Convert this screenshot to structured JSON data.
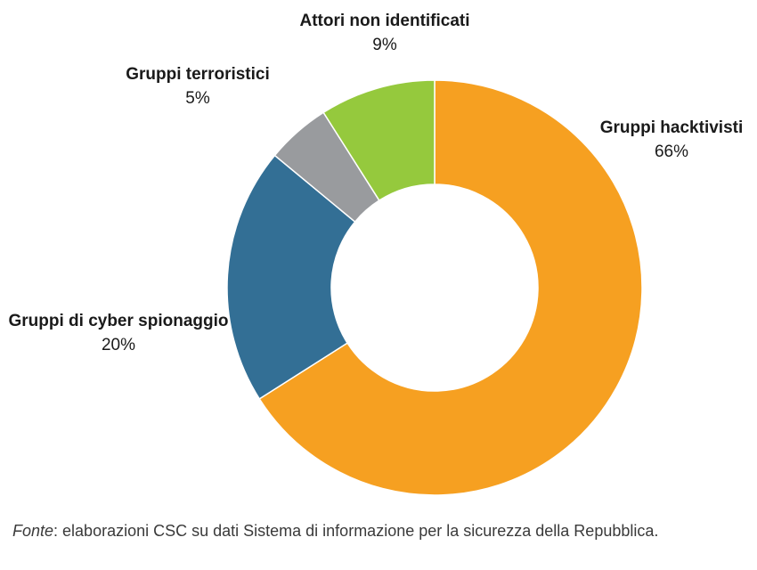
{
  "chart_data": {
    "type": "pie",
    "variant": "donut",
    "slices": [
      {
        "label": "Gruppi hacktivisti",
        "value": 66,
        "value_label": "66%",
        "color": "#F6A021"
      },
      {
        "label": "Gruppi di cyber spionaggio",
        "value": 20,
        "value_label": "20%",
        "color": "#336F95"
      },
      {
        "label": "Gruppi terroristici",
        "value": 5,
        "value_label": "5%",
        "color": "#999B9E"
      },
      {
        "label": "Attori non identificati",
        "value": 9,
        "value_label": "9%",
        "color": "#95C93D"
      }
    ],
    "start_angle": "12 o'clock",
    "direction": "clockwise",
    "legend": "none (labels beside slices)"
  },
  "footnote": {
    "prefix": "Fonte",
    "text": ": elaborazioni CSC su dati Sistema di informazione per la sicurezza della Repubblica."
  }
}
